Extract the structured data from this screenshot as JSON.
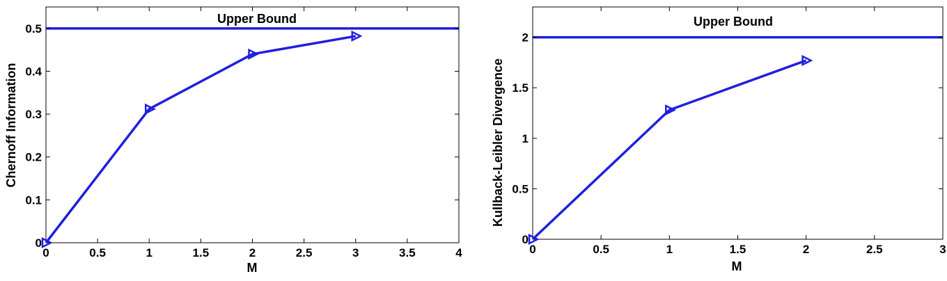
{
  "chart_data": [
    {
      "type": "line",
      "xlabel": "M",
      "ylabel": "Chernoff Information",
      "xlim": [
        0,
        4
      ],
      "ylim": [
        0,
        0.55
      ],
      "x_ticks": [
        "0",
        "0.5",
        "1",
        "1.5",
        "2",
        "2.5",
        "3",
        "3.5",
        "4"
      ],
      "y_ticks": [
        "0",
        "0.1",
        "0.2",
        "0.3",
        "0.4",
        "0.5"
      ],
      "series": [
        {
          "x": [
            0,
            1,
            2,
            3
          ],
          "y": [
            0,
            0.312,
            0.44,
            0.482
          ],
          "marker": "triangle-right"
        }
      ],
      "reference_line": {
        "y": 0.5,
        "label": "Upper Bound"
      },
      "color": "#1f1fdd",
      "grid": false
    },
    {
      "type": "line",
      "xlabel": "M",
      "ylabel": "Kullback-Leibler Divergence",
      "xlim": [
        0,
        3
      ],
      "ylim": [
        0,
        2.3
      ],
      "x_ticks": [
        "0",
        "0.5",
        "1",
        "1.5",
        "2",
        "2.5",
        "3"
      ],
      "y_ticks": [
        "0",
        "0.5",
        "1",
        "1.5",
        "2"
      ],
      "series": [
        {
          "x": [
            0,
            1,
            2
          ],
          "y": [
            0,
            1.28,
            1.77
          ],
          "marker": "triangle-right"
        }
      ],
      "reference_line": {
        "y": 2,
        "label": "Upper Bound"
      },
      "color": "#1f1fdd",
      "grid": false
    }
  ]
}
